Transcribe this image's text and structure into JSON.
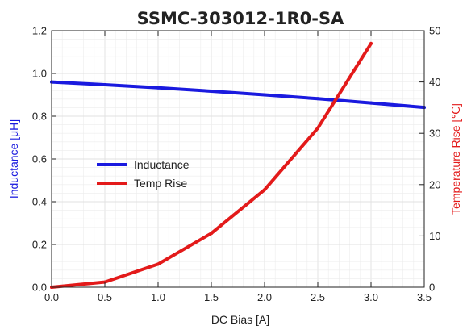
{
  "chart_data": {
    "type": "line",
    "title": "SSMC-303012-1R0-SA",
    "xlabel": "DC Bias [A]",
    "ylabel_left": "Inductance [μH]",
    "ylabel_right": "Temperature Rise [℃]",
    "xlim": [
      0,
      3.5
    ],
    "ylim_left": [
      0,
      1.2
    ],
    "ylim_right": [
      0,
      50
    ],
    "x_ticks": [
      "0.0",
      "0.5",
      "1.0",
      "1.5",
      "2.0",
      "2.5",
      "3.0",
      "3.5"
    ],
    "y_left_ticks": [
      "0.0",
      "0.2",
      "0.4",
      "0.6",
      "0.8",
      "1.0",
      "1.2"
    ],
    "y_right_ticks": [
      "0",
      "10",
      "20",
      "30",
      "40",
      "50"
    ],
    "grid": true,
    "legend_position": "center-left",
    "series": [
      {
        "name": "Inductance",
        "axis": "left",
        "color": "#1a1adf",
        "x": [
          0.0,
          0.5,
          1.0,
          1.5,
          2.0,
          2.5,
          3.0,
          3.5
        ],
        "values": [
          0.96,
          0.947,
          0.933,
          0.917,
          0.9,
          0.882,
          0.862,
          0.841
        ]
      },
      {
        "name": "Temp Rise",
        "axis": "right",
        "color": "#e31a1a",
        "x": [
          0.0,
          0.5,
          1.0,
          1.5,
          2.0,
          2.5,
          3.0
        ],
        "values": [
          0,
          1,
          4.5,
          10.5,
          19,
          31,
          47.5
        ]
      }
    ]
  }
}
